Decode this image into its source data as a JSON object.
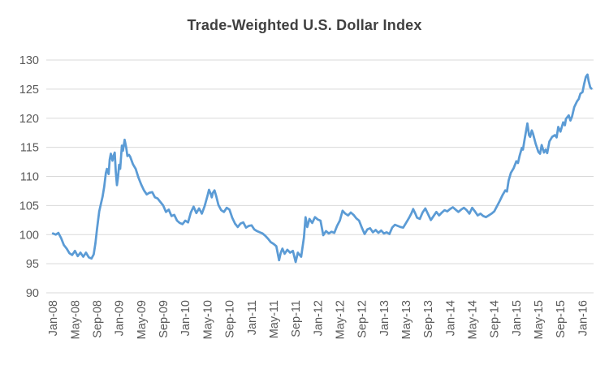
{
  "page": {
    "background": "#FFFFFF"
  },
  "chart_data": {
    "type": "line",
    "title": "Trade-Weighted U.S. Dollar Index",
    "xlabel": "",
    "ylabel": "",
    "legend": "none",
    "grid": "horizontal",
    "ylim": [
      90,
      130
    ],
    "xlim_months": [
      -1.2,
      98
    ],
    "y_ticks": [
      90,
      95,
      100,
      105,
      110,
      115,
      120,
      125,
      130
    ],
    "x_tick_months": [
      0,
      4,
      8,
      12,
      16,
      20,
      24,
      28,
      32,
      36,
      40,
      44,
      48,
      52,
      56,
      60,
      64,
      68,
      72,
      76,
      80,
      84,
      88,
      92,
      96
    ],
    "x_tick_labels": [
      "Jan-08",
      "May-08",
      "Sep-08",
      "Jan-09",
      "May-09",
      "Sep-09",
      "Jan-10",
      "May-10",
      "Sep-10",
      "Jan-11",
      "May-11",
      "Sep-11",
      "Jan-12",
      "May-12",
      "Sep-12",
      "Jan-13",
      "May-13",
      "Sep-13",
      "Jan-14",
      "May-14",
      "Sep-14",
      "Jan-15",
      "May-15",
      "Sep-15",
      "Jan-16"
    ],
    "colors": {
      "line": "#5B9BD5",
      "grid": "#D9D9D9",
      "tick_label": "#595959",
      "title": "#404040"
    },
    "series": [
      {
        "name": "Trade-Weighted U.S. Dollar Index",
        "x_unit": "months since Jan-08",
        "points": [
          [
            0,
            100.2
          ],
          [
            0.5,
            100.0
          ],
          [
            1,
            100.3
          ],
          [
            1.5,
            99.4
          ],
          [
            2,
            98.2
          ],
          [
            2.5,
            97.6
          ],
          [
            3,
            96.8
          ],
          [
            3.5,
            96.5
          ],
          [
            4,
            97.2
          ],
          [
            4.5,
            96.3
          ],
          [
            5,
            96.9
          ],
          [
            5.5,
            96.2
          ],
          [
            6,
            96.9
          ],
          [
            6.5,
            96.1
          ],
          [
            7,
            95.9
          ],
          [
            7.4,
            96.6
          ],
          [
            7.7,
            98.5
          ],
          [
            8,
            101.0
          ],
          [
            8.4,
            104.0
          ],
          [
            8.7,
            105.3
          ],
          [
            9,
            106.5
          ],
          [
            9.3,
            108.2
          ],
          [
            9.6,
            110.6
          ],
          [
            9.8,
            111.3
          ],
          [
            10.1,
            110.4
          ],
          [
            10.3,
            112.9
          ],
          [
            10.5,
            113.9
          ],
          [
            10.8,
            112.7
          ],
          [
            11,
            113.6
          ],
          [
            11.2,
            114.1
          ],
          [
            11.4,
            110.8
          ],
          [
            11.6,
            108.5
          ],
          [
            11.8,
            109.8
          ],
          [
            12,
            112.0
          ],
          [
            12.2,
            111.3
          ],
          [
            12.5,
            115.3
          ],
          [
            12.7,
            114.4
          ],
          [
            13,
            116.3
          ],
          [
            13.3,
            114.9
          ],
          [
            13.5,
            113.5
          ],
          [
            13.8,
            113.7
          ],
          [
            14,
            113.4
          ],
          [
            14.5,
            112.1
          ],
          [
            15,
            111.3
          ],
          [
            15.5,
            109.8
          ],
          [
            16,
            108.6
          ],
          [
            16.5,
            107.6
          ],
          [
            17,
            106.9
          ],
          [
            17.5,
            107.2
          ],
          [
            18,
            107.3
          ],
          [
            18.5,
            106.4
          ],
          [
            19,
            106.2
          ],
          [
            19.5,
            105.6
          ],
          [
            20,
            105.0
          ],
          [
            20.5,
            103.9
          ],
          [
            21,
            104.3
          ],
          [
            21.5,
            103.2
          ],
          [
            22,
            103.4
          ],
          [
            22.5,
            102.4
          ],
          [
            23,
            102.0
          ],
          [
            23.5,
            101.8
          ],
          [
            24,
            102.4
          ],
          [
            24.5,
            102.1
          ],
          [
            25,
            103.8
          ],
          [
            25.5,
            104.8
          ],
          [
            26,
            103.7
          ],
          [
            26.5,
            104.5
          ],
          [
            27,
            103.6
          ],
          [
            27.5,
            104.9
          ],
          [
            28,
            106.6
          ],
          [
            28.3,
            107.7
          ],
          [
            28.6,
            107.0
          ],
          [
            28.8,
            106.4
          ],
          [
            29,
            107.2
          ],
          [
            29.3,
            107.6
          ],
          [
            29.6,
            106.6
          ],
          [
            30,
            105.1
          ],
          [
            30.5,
            104.2
          ],
          [
            31,
            103.9
          ],
          [
            31.5,
            104.6
          ],
          [
            32,
            104.3
          ],
          [
            32.5,
            102.9
          ],
          [
            33,
            101.9
          ],
          [
            33.5,
            101.3
          ],
          [
            34,
            101.9
          ],
          [
            34.5,
            102.1
          ],
          [
            35,
            101.2
          ],
          [
            35.5,
            101.5
          ],
          [
            36,
            101.6
          ],
          [
            36.5,
            100.9
          ],
          [
            37,
            100.6
          ],
          [
            37.5,
            100.4
          ],
          [
            38,
            100.2
          ],
          [
            38.5,
            99.8
          ],
          [
            39,
            99.3
          ],
          [
            39.5,
            98.7
          ],
          [
            40,
            98.4
          ],
          [
            40.5,
            98.0
          ],
          [
            41,
            95.6
          ],
          [
            41.3,
            96.9
          ],
          [
            41.6,
            97.6
          ],
          [
            42,
            96.7
          ],
          [
            42.5,
            97.4
          ],
          [
            43,
            96.9
          ],
          [
            43.5,
            97.2
          ],
          [
            44,
            95.3
          ],
          [
            44.4,
            96.9
          ],
          [
            45,
            96.2
          ],
          [
            45.5,
            99.5
          ],
          [
            45.8,
            103.0
          ],
          [
            46.1,
            101.3
          ],
          [
            46.5,
            102.7
          ],
          [
            47,
            102.0
          ],
          [
            47.5,
            103.0
          ],
          [
            48,
            102.6
          ],
          [
            48.5,
            102.4
          ],
          [
            49,
            99.9
          ],
          [
            49.5,
            100.6
          ],
          [
            50,
            100.2
          ],
          [
            50.5,
            100.5
          ],
          [
            51,
            100.3
          ],
          [
            51.5,
            101.5
          ],
          [
            52,
            102.4
          ],
          [
            52.5,
            104.1
          ],
          [
            53,
            103.6
          ],
          [
            53.5,
            103.3
          ],
          [
            54,
            103.8
          ],
          [
            54.5,
            103.4
          ],
          [
            55,
            102.8
          ],
          [
            55.5,
            102.4
          ],
          [
            56,
            101.2
          ],
          [
            56.5,
            100.1
          ],
          [
            57,
            100.9
          ],
          [
            57.5,
            101.1
          ],
          [
            58,
            100.4
          ],
          [
            58.5,
            100.8
          ],
          [
            59,
            100.3
          ],
          [
            59.5,
            100.7
          ],
          [
            60,
            100.2
          ],
          [
            60.5,
            100.4
          ],
          [
            61,
            100.1
          ],
          [
            61.5,
            101.2
          ],
          [
            62,
            101.7
          ],
          [
            62.5,
            101.5
          ],
          [
            63,
            101.3
          ],
          [
            63.5,
            101.2
          ],
          [
            64,
            102.0
          ],
          [
            64.5,
            102.8
          ],
          [
            65,
            103.7
          ],
          [
            65.3,
            104.4
          ],
          [
            65.7,
            103.6
          ],
          [
            66,
            102.9
          ],
          [
            66.5,
            102.7
          ],
          [
            67,
            103.8
          ],
          [
            67.5,
            104.5
          ],
          [
            68,
            103.5
          ],
          [
            68.5,
            102.5
          ],
          [
            69,
            103.2
          ],
          [
            69.5,
            103.9
          ],
          [
            70,
            103.3
          ],
          [
            70.5,
            103.8
          ],
          [
            71,
            104.2
          ],
          [
            71.5,
            104.0
          ],
          [
            72,
            104.4
          ],
          [
            72.5,
            104.7
          ],
          [
            73,
            104.3
          ],
          [
            73.5,
            103.9
          ],
          [
            74,
            104.3
          ],
          [
            74.5,
            104.6
          ],
          [
            75,
            104.2
          ],
          [
            75.5,
            103.6
          ],
          [
            76,
            104.6
          ],
          [
            76.5,
            104.0
          ],
          [
            77,
            103.3
          ],
          [
            77.5,
            103.6
          ],
          [
            78,
            103.2
          ],
          [
            78.5,
            103.0
          ],
          [
            79,
            103.3
          ],
          [
            79.5,
            103.6
          ],
          [
            80,
            104.0
          ],
          [
            80.5,
            104.9
          ],
          [
            81,
            105.8
          ],
          [
            81.5,
            106.8
          ],
          [
            82,
            107.6
          ],
          [
            82.3,
            107.4
          ],
          [
            82.6,
            109.3
          ],
          [
            83,
            110.6
          ],
          [
            83.5,
            111.4
          ],
          [
            84,
            112.6
          ],
          [
            84.3,
            112.3
          ],
          [
            84.6,
            113.6
          ],
          [
            85,
            114.9
          ],
          [
            85.2,
            114.6
          ],
          [
            85.5,
            116.4
          ],
          [
            86,
            119.1
          ],
          [
            86.3,
            117.1
          ],
          [
            86.5,
            116.8
          ],
          [
            86.8,
            117.9
          ],
          [
            87,
            117.4
          ],
          [
            87.5,
            115.6
          ],
          [
            88,
            114.2
          ],
          [
            88.3,
            113.9
          ],
          [
            88.6,
            115.4
          ],
          [
            89,
            114.1
          ],
          [
            89.3,
            114.6
          ],
          [
            89.6,
            114.0
          ],
          [
            90,
            116.0
          ],
          [
            90.5,
            116.8
          ],
          [
            91,
            117.1
          ],
          [
            91.3,
            116.7
          ],
          [
            91.6,
            118.5
          ],
          [
            92,
            117.7
          ],
          [
            92.5,
            119.3
          ],
          [
            92.8,
            118.8
          ],
          [
            93,
            119.9
          ],
          [
            93.5,
            120.5
          ],
          [
            93.8,
            119.6
          ],
          [
            94.1,
            120.3
          ],
          [
            94.5,
            121.9
          ],
          [
            95,
            122.9
          ],
          [
            95.3,
            123.3
          ],
          [
            95.6,
            124.2
          ],
          [
            96,
            124.5
          ],
          [
            96.3,
            125.9
          ],
          [
            96.6,
            127.1
          ],
          [
            96.9,
            127.5
          ],
          [
            97.1,
            126.4
          ],
          [
            97.4,
            125.3
          ],
          [
            97.6,
            125.1
          ]
        ]
      }
    ]
  }
}
